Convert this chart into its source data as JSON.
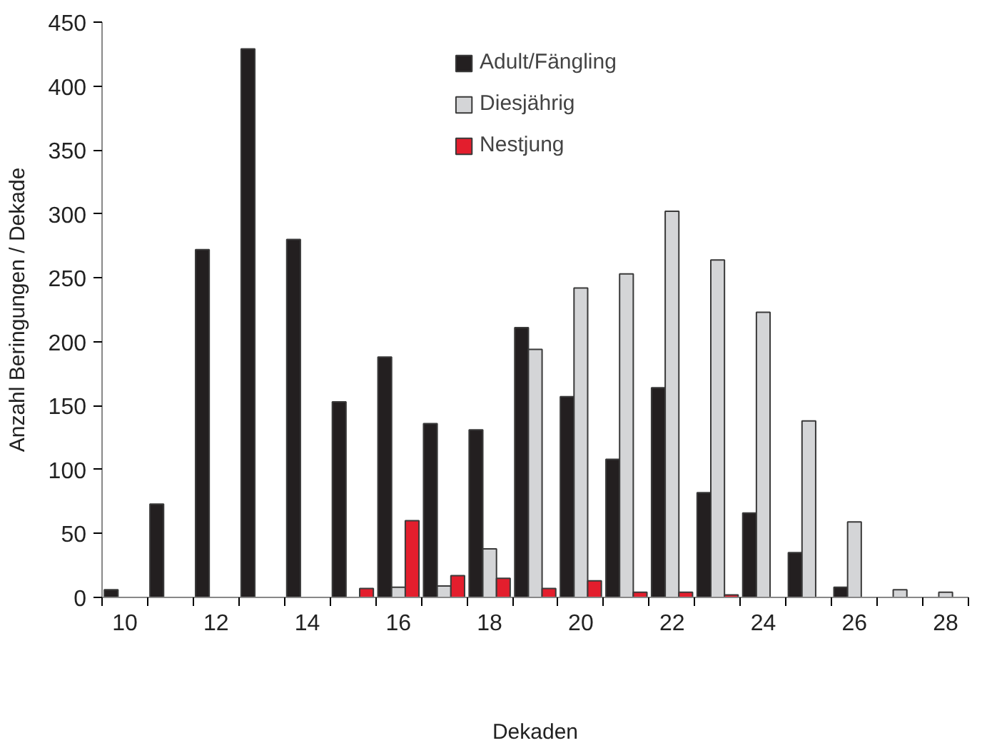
{
  "chart_data": {
    "type": "bar",
    "xlabel": "Dekaden",
    "ylabel": "Anzahl Beringungen / Dekade",
    "categories": [
      "10",
      null,
      "12",
      null,
      "14",
      null,
      "16",
      null,
      "18",
      null,
      "20",
      null,
      "22",
      null,
      "24",
      null,
      "26",
      null,
      "28"
    ],
    "series": [
      {
        "name": "Adult/Fängling",
        "color": "#231f20",
        "values": [
          6,
          73,
          272,
          429,
          280,
          153,
          188,
          136,
          131,
          211,
          157,
          108,
          164,
          82,
          66,
          35,
          8,
          null,
          null
        ]
      },
      {
        "name": "Diesjährig",
        "color": "#d4d5d7",
        "values": [
          null,
          null,
          null,
          null,
          null,
          null,
          8,
          9,
          38,
          194,
          242,
          253,
          302,
          264,
          223,
          138,
          59,
          6,
          4
        ]
      },
      {
        "name": "Nestjung",
        "color": "#e31e2d",
        "values": [
          null,
          null,
          null,
          null,
          null,
          7,
          60,
          17,
          15,
          7,
          13,
          4,
          4,
          2,
          null,
          null,
          null,
          null,
          null
        ]
      }
    ],
    "ylim": [
      0,
      450
    ],
    "yticks": [
      0,
      50,
      100,
      150,
      200,
      250,
      300,
      350,
      400,
      450
    ],
    "grid": false,
    "legend": "top"
  }
}
